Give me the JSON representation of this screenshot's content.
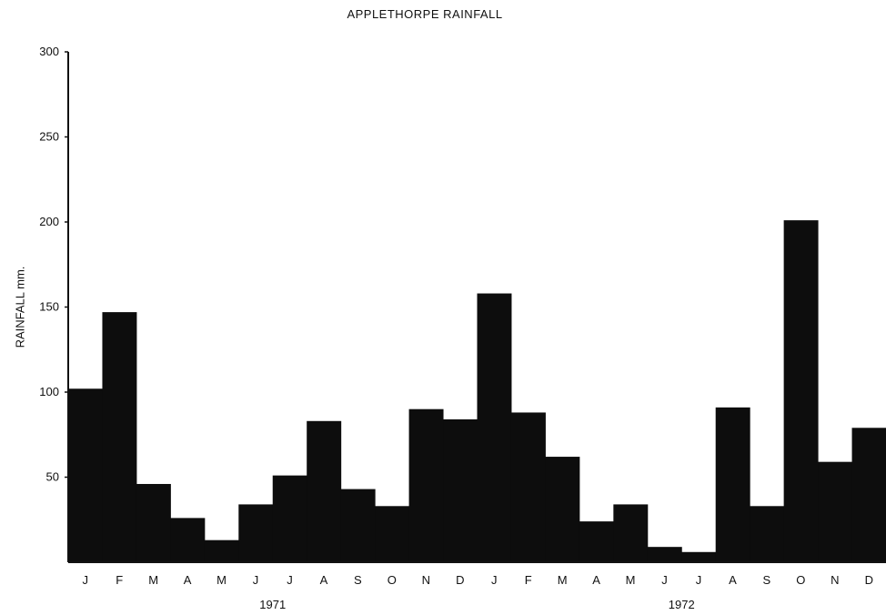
{
  "chart_data": {
    "type": "bar",
    "title": "APPLETHORPE RAINFALL",
    "xlabel": "",
    "ylabel": "RAINFALL mm.",
    "ylim": [
      0,
      300
    ],
    "yticks": [
      "50",
      "100",
      "150",
      "200",
      "250",
      "300"
    ],
    "categories": [
      "J",
      "F",
      "M",
      "A",
      "M",
      "J",
      "J",
      "A",
      "S",
      "O",
      "N",
      "D",
      "J",
      "F",
      "M",
      "A",
      "M",
      "J",
      "J",
      "A",
      "S",
      "O",
      "N",
      "D"
    ],
    "values": [
      102,
      147,
      46,
      26,
      13,
      34,
      51,
      83,
      43,
      33,
      90,
      84,
      158,
      88,
      62,
      24,
      34,
      9,
      6,
      91,
      33,
      201,
      59,
      79
    ],
    "groups": [
      {
        "label": "1971",
        "start": 0,
        "end": 11
      },
      {
        "label": "1972",
        "start": 12,
        "end": 23
      }
    ],
    "bar_color": "#0d0d0d",
    "grid": false,
    "legend": "none"
  }
}
